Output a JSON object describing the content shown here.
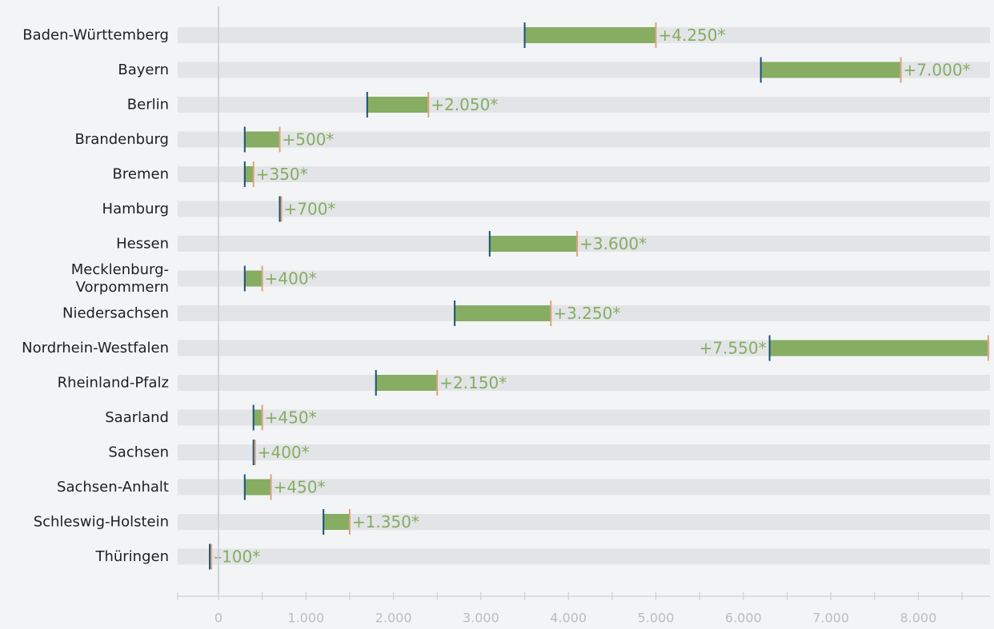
{
  "chart_data": {
    "type": "bar",
    "subtype": "range",
    "title": "",
    "xlabel": "",
    "ylabel": "",
    "xlim": [
      -400,
      8800
    ],
    "x_ticks": [
      0,
      1000,
      2000,
      3000,
      4000,
      5000,
      6000,
      7000,
      8000
    ],
    "x_tick_labels": [
      "0",
      "1.000",
      "2.000",
      "3.000",
      "4.000",
      "5.000",
      "6.000",
      "7.000",
      "8.000"
    ],
    "grid": false,
    "legend": "none",
    "colors": {
      "range_bar": "#86ad62",
      "start_marker": "#1a5276",
      "end_marker": "#dda37f",
      "value_label": "#86ad62",
      "background_track": "#e2e4e7",
      "zero_line": "#c7c9cc",
      "axis": "#c7c9cc"
    },
    "categories": [
      "Baden-Württemberg",
      "Bayern",
      "Berlin",
      "Brandenburg",
      "Bremen",
      "Hamburg",
      "Hessen",
      "Mecklenburg-Vorpommern",
      "Niedersachsen",
      "Nordrhein-Westfalen",
      "Rheinland-Pfalz",
      "Saarland",
      "Sachsen",
      "Sachsen-Anhalt",
      "Schleswig-Holstein",
      "Thüringen"
    ],
    "category_display_lines": [
      [
        "Baden-Württemberg"
      ],
      [
        "Bayern"
      ],
      [
        "Berlin"
      ],
      [
        "Brandenburg"
      ],
      [
        "Bremen"
      ],
      [
        "Hamburg"
      ],
      [
        "Hessen"
      ],
      [
        "Mecklenburg-",
        "Vorpommern"
      ],
      [
        "Niedersachsen"
      ],
      [
        "Nordrhein-Westfalen"
      ],
      [
        "Rheinland-Pfalz"
      ],
      [
        "Saarland"
      ],
      [
        "Sachsen"
      ],
      [
        "Sachsen-Anhalt"
      ],
      [
        "Schleswig-Holstein"
      ],
      [
        "Thüringen"
      ]
    ],
    "start": [
      3500,
      6200,
      1700,
      300,
      300,
      700,
      3100,
      300,
      2700,
      6300,
      1800,
      400,
      400,
      300,
      1200,
      -100
    ],
    "end": [
      5000,
      7800,
      2400,
      700,
      400,
      700,
      4100,
      500,
      3800,
      8800,
      2500,
      500,
      400,
      600,
      1500,
      -100
    ],
    "value_labels": [
      "+4.250*",
      "+7.000*",
      "+2.050*",
      "+500*",
      "+350*",
      "+700*",
      "+3.600*",
      "+400*",
      "+3.250*",
      "+7.550*",
      "+2.150*",
      "+450*",
      "+400*",
      "+450*",
      "+1.350*",
      "–100*"
    ],
    "value_label_side": [
      "right",
      "right",
      "right",
      "right",
      "right",
      "right",
      "right",
      "right",
      "right",
      "left",
      "right",
      "right",
      "right",
      "right",
      "right",
      "right"
    ]
  }
}
